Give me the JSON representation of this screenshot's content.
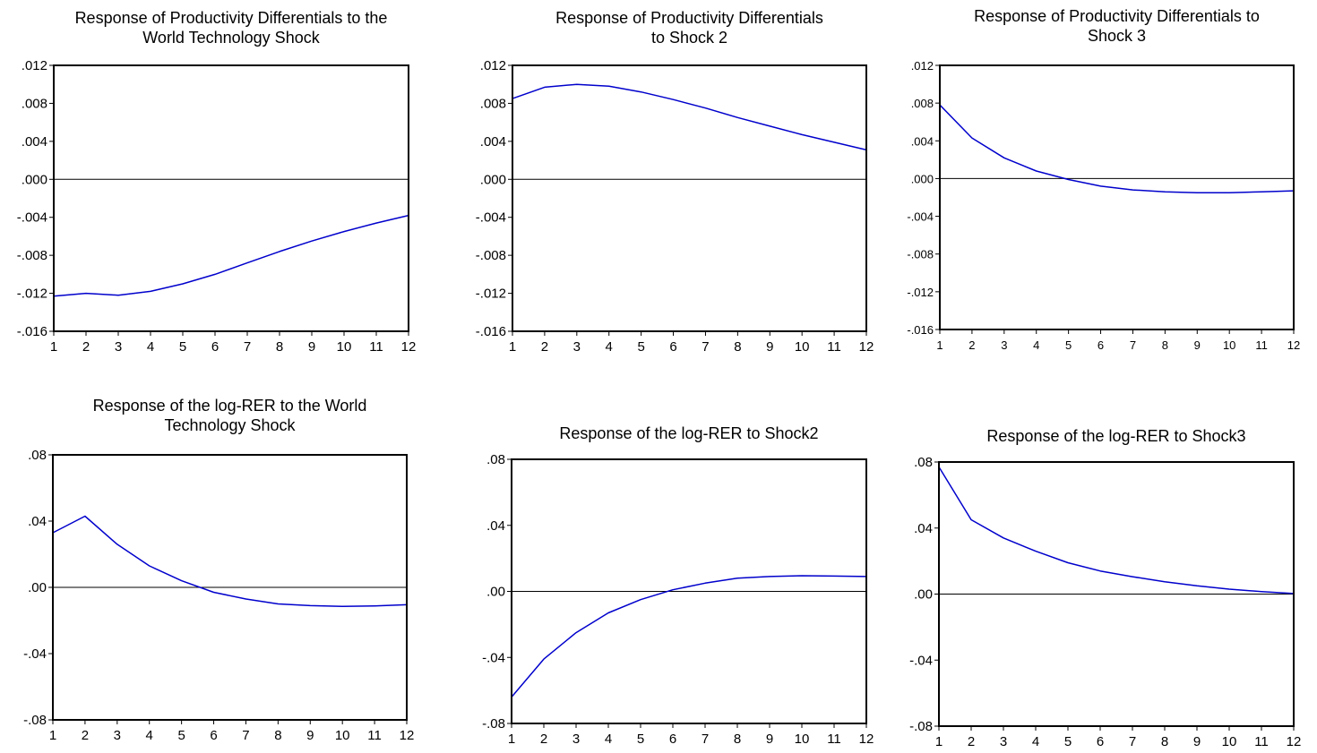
{
  "chart_data": [
    {
      "type": "line",
      "title": [
        "Response of Productivity Differentials to the",
        "World Technology Shock"
      ],
      "x": [
        1,
        2,
        3,
        4,
        5,
        6,
        7,
        8,
        9,
        10,
        11,
        12
      ],
      "x_tick_labels": [
        "1",
        "2",
        "3",
        "4",
        "5",
        "6",
        "7",
        "8",
        "9",
        "10",
        "11",
        "12"
      ],
      "y_ticks": [
        0.012,
        0.008,
        0.004,
        0.0,
        -0.004,
        -0.008,
        -0.012,
        -0.016
      ],
      "y_tick_labels": [
        ".012",
        ".008",
        ".004",
        ".000",
        "-.004",
        "-.008",
        "-.012",
        "-.016"
      ],
      "ylim": [
        -0.016,
        0.012
      ],
      "zero_line": true,
      "grid": false,
      "series": [
        {
          "values": [
            -0.0123,
            -0.012,
            -0.0122,
            -0.0118,
            -0.011,
            -0.01,
            -0.0088,
            -0.0076,
            -0.0065,
            -0.0055,
            -0.0046,
            -0.0038
          ],
          "color": "#0000cc"
        }
      ]
    },
    {
      "type": "line",
      "title": [
        "Response of Productivity Differentials",
        "to Shock 2"
      ],
      "x": [
        1,
        2,
        3,
        4,
        5,
        6,
        7,
        8,
        9,
        10,
        11,
        12
      ],
      "x_tick_labels": [
        "1",
        "2",
        "3",
        "4",
        "5",
        "6",
        "7",
        "8",
        "9",
        "10",
        "11",
        "12"
      ],
      "y_ticks": [
        0.012,
        0.008,
        0.004,
        0.0,
        -0.004,
        -0.008,
        -0.012,
        -0.016
      ],
      "y_tick_labels": [
        ".012",
        ".008",
        ".004",
        ".000",
        "-.004",
        "-.008",
        "-.012",
        "-.016"
      ],
      "ylim": [
        -0.016,
        0.012
      ],
      "zero_line": true,
      "grid": false,
      "series": [
        {
          "values": [
            0.0085,
            0.0097,
            0.01,
            0.0098,
            0.0092,
            0.0084,
            0.0075,
            0.0065,
            0.0056,
            0.0047,
            0.0039,
            0.0031
          ],
          "color": "#0000cc"
        }
      ]
    },
    {
      "type": "line",
      "title": [
        "Response of Productivity Differentials to",
        "Shock 3"
      ],
      "x": [
        1,
        2,
        3,
        4,
        5,
        6,
        7,
        8,
        9,
        10,
        11,
        12
      ],
      "x_tick_labels": [
        "1",
        "2",
        "3",
        "4",
        "5",
        "6",
        "7",
        "8",
        "9",
        "10",
        "11",
        "12"
      ],
      "y_ticks": [
        0.012,
        0.008,
        0.004,
        0.0,
        -0.004,
        -0.008,
        -0.012,
        -0.016
      ],
      "y_tick_labels": [
        ".012",
        ".008",
        ".004",
        ".000",
        "-.004",
        "-.008",
        "-.012",
        "-.016"
      ],
      "ylim": [
        -0.016,
        0.012
      ],
      "zero_line": true,
      "grid": false,
      "small_ticks": true,
      "series": [
        {
          "values": [
            0.0078,
            0.0043,
            0.0022,
            0.0008,
            -0.0001,
            -0.0008,
            -0.0012,
            -0.0014,
            -0.0015,
            -0.0015,
            -0.0014,
            -0.0013
          ],
          "color": "#0000cc"
        }
      ]
    },
    {
      "type": "line",
      "title": [
        "Response of the log-RER to the World",
        "Technology Shock"
      ],
      "x": [
        1,
        2,
        3,
        4,
        5,
        6,
        7,
        8,
        9,
        10,
        11,
        12
      ],
      "x_tick_labels": [
        "1",
        "2",
        "3",
        "4",
        "5",
        "6",
        "7",
        "8",
        "9",
        "10",
        "11",
        "12"
      ],
      "y_ticks": [
        0.08,
        0.04,
        0.0,
        -0.04,
        -0.08
      ],
      "y_tick_labels": [
        ".08",
        ".04",
        ".00",
        "-.04",
        "-.08"
      ],
      "ylim": [
        -0.08,
        0.08
      ],
      "zero_line": true,
      "grid": false,
      "series": [
        {
          "values": [
            0.033,
            0.043,
            0.026,
            0.013,
            0.004,
            -0.003,
            -0.007,
            -0.01,
            -0.011,
            -0.0115,
            -0.0112,
            -0.0105
          ],
          "color": "#0000cc"
        }
      ]
    },
    {
      "type": "line",
      "title": [
        "Response of the log-RER to Shock2"
      ],
      "x": [
        1,
        2,
        3,
        4,
        5,
        6,
        7,
        8,
        9,
        10,
        11,
        12
      ],
      "x_tick_labels": [
        "1",
        "2",
        "3",
        "4",
        "5",
        "6",
        "7",
        "8",
        "9",
        "10",
        "11",
        "12"
      ],
      "y_ticks": [
        0.08,
        0.04,
        0.0,
        -0.04,
        -0.08
      ],
      "y_tick_labels": [
        ".08",
        ".04",
        ".00",
        "-.04",
        "-.08"
      ],
      "ylim": [
        -0.08,
        0.08
      ],
      "zero_line": true,
      "grid": false,
      "series": [
        {
          "values": [
            -0.064,
            -0.041,
            -0.025,
            -0.013,
            -0.005,
            0.001,
            0.005,
            0.008,
            0.009,
            0.0095,
            0.0093,
            0.009
          ],
          "color": "#0000cc"
        }
      ]
    },
    {
      "type": "line",
      "title": [
        "Response of the log-RER to Shock3"
      ],
      "x": [
        1,
        2,
        3,
        4,
        5,
        6,
        7,
        8,
        9,
        10,
        11,
        12
      ],
      "x_tick_labels": [
        "1",
        "2",
        "3",
        "4",
        "5",
        "6",
        "7",
        "8",
        "9",
        "10",
        "11",
        "12"
      ],
      "y_ticks": [
        0.08,
        0.04,
        0.0,
        -0.04,
        -0.08
      ],
      "y_tick_labels": [
        ".08",
        ".04",
        ".00",
        "-.04",
        "-.08"
      ],
      "ylim": [
        -0.08,
        0.08
      ],
      "zero_line": true,
      "grid": false,
      "series": [
        {
          "values": [
            0.077,
            0.045,
            0.034,
            0.026,
            0.019,
            0.014,
            0.0105,
            0.0075,
            0.005,
            0.003,
            0.0015,
            0.0003
          ],
          "color": "#0000cc"
        }
      ]
    }
  ]
}
